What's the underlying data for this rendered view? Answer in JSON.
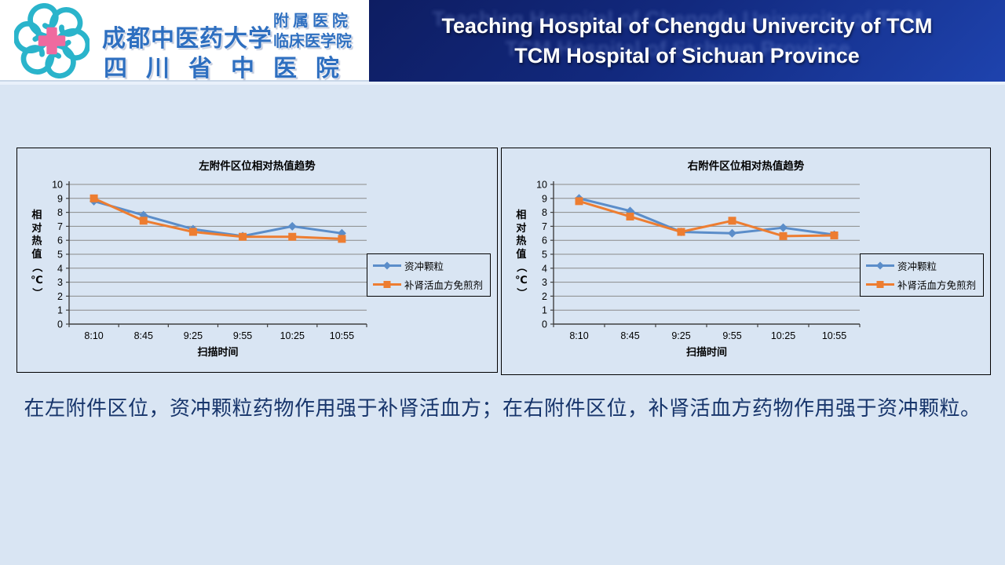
{
  "header": {
    "logo": {
      "org_main": "成都中医药大学",
      "org_sub1": "附属医院",
      "org_sub2": "临床医学院",
      "org_bottom": "四川省中医院"
    },
    "title_line1": "Teaching Hospital of Chengdu Univercity of TCM",
    "title_line2": "TCM Hospital of Sichuan Province"
  },
  "caption": "在左附件区位，资冲颗粒药物作用强于补肾活血方；在右附件区位，补肾活血方药物作用强于资冲颗粒。",
  "colors": {
    "page_bg": "#d9e5f3",
    "header_blue_dark": "#0e1d62",
    "header_blue_light": "#1e43ae",
    "logo_text_blue": "#2e6fc0",
    "logo_petal_teal": "#2ab4cb",
    "logo_cross_pink": "#ef6a9f",
    "gridline": "#8a8a8a",
    "axis": "#404040",
    "caption_text": "#17356b",
    "series_blue": "#5b8dc9",
    "series_orange": "#ed7d31"
  },
  "chart_data": [
    {
      "type": "line",
      "title": "左附件区位相对热值趋势",
      "categories": [
        "8:10",
        "8:45",
        "9:25",
        "9:55",
        "10:25",
        "10:55"
      ],
      "series": [
        {
          "name": "资冲颗粒",
          "color": "#5b8dc9",
          "marker": "diamond",
          "values": [
            8.8,
            7.8,
            6.8,
            6.3,
            7.0,
            6.5
          ]
        },
        {
          "name": "补肾活血方免煎剂",
          "color": "#ed7d31",
          "marker": "square",
          "values": [
            9.0,
            7.4,
            6.6,
            6.25,
            6.25,
            6.1
          ]
        }
      ],
      "xlabel": "扫描时间",
      "ylabel": "相对热值（℃）",
      "ylim": [
        0,
        10
      ],
      "ytick_step": 1,
      "grid": true,
      "legend_position": "right"
    },
    {
      "type": "line",
      "title": "右附件区位相对热值趋势",
      "categories": [
        "8:10",
        "8:45",
        "9:25",
        "9:55",
        "10:25",
        "10:55"
      ],
      "series": [
        {
          "name": "资冲颗粒",
          "color": "#5b8dc9",
          "marker": "diamond",
          "values": [
            9.0,
            8.1,
            6.6,
            6.5,
            6.9,
            6.4
          ]
        },
        {
          "name": "补肾活血方免煎剂",
          "color": "#ed7d31",
          "marker": "square",
          "values": [
            8.8,
            7.7,
            6.6,
            7.4,
            6.3,
            6.35
          ]
        }
      ],
      "xlabel": "扫描时间",
      "ylabel": "相对热值（℃）",
      "ylim": [
        0,
        10
      ],
      "ytick_step": 1,
      "grid": true,
      "legend_position": "right"
    }
  ]
}
